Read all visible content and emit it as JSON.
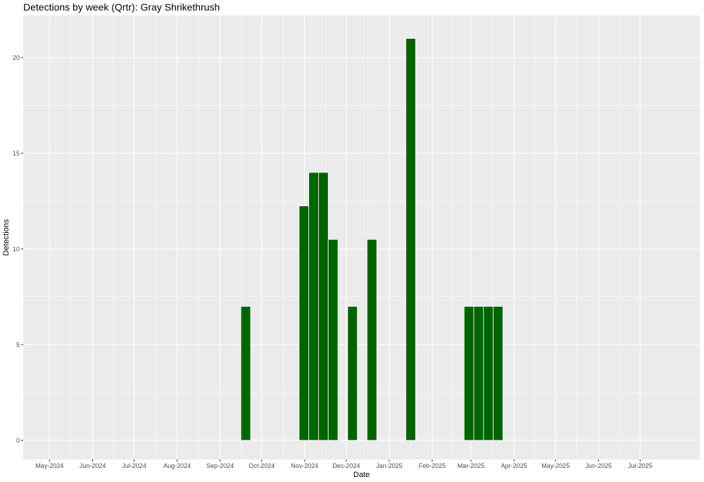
{
  "chart_data": {
    "type": "bar",
    "title": "Detections by week (Qrtr): Gray Shrikethrush",
    "xlabel": "Date",
    "ylabel": "Detections",
    "ylim": [
      -1,
      22.2
    ],
    "yticks": [
      0,
      5,
      10,
      15,
      20
    ],
    "xlim": [
      "2024-04-12",
      "2025-08-13"
    ],
    "xticks": [
      {
        "date": "2024-05-01",
        "label": "May-2024"
      },
      {
        "date": "2024-06-01",
        "label": "Jun-2024"
      },
      {
        "date": "2024-07-01",
        "label": "Jul-2024"
      },
      {
        "date": "2024-08-01",
        "label": "Aug-2024"
      },
      {
        "date": "2024-09-01",
        "label": "Sep-2024"
      },
      {
        "date": "2024-10-01",
        "label": "Oct-2024"
      },
      {
        "date": "2024-11-01",
        "label": "Nov-2024"
      },
      {
        "date": "2024-12-01",
        "label": "Dec-2024"
      },
      {
        "date": "2025-01-01",
        "label": "Jan-2025"
      },
      {
        "date": "2025-02-01",
        "label": "Feb-2025"
      },
      {
        "date": "2025-03-01",
        "label": "Mar-2025"
      },
      {
        "date": "2025-04-01",
        "label": "Apr-2025"
      },
      {
        "date": "2025-05-01",
        "label": "May-2025"
      },
      {
        "date": "2025-06-01",
        "label": "Jun-2025"
      },
      {
        "date": "2025-07-01",
        "label": "Jul-2025"
      }
    ],
    "bar_width_days": 7,
    "bars": [
      {
        "week_start": "2024-09-16",
        "value": 7
      },
      {
        "week_start": "2024-10-28",
        "value": 12.25
      },
      {
        "week_start": "2024-11-04",
        "value": 14
      },
      {
        "week_start": "2024-11-11",
        "value": 14
      },
      {
        "week_start": "2024-11-18",
        "value": 10.5
      },
      {
        "week_start": "2024-12-02",
        "value": 7
      },
      {
        "week_start": "2024-12-16",
        "value": 10.5
      },
      {
        "week_start": "2025-01-13",
        "value": 21
      },
      {
        "week_start": "2025-02-24",
        "value": 7
      },
      {
        "week_start": "2025-03-03",
        "value": 7
      },
      {
        "week_start": "2025-03-10",
        "value": 7
      },
      {
        "week_start": "2025-03-17",
        "value": 7
      }
    ],
    "bar_color": "#006400",
    "panel_color": "#ebebeb",
    "grid_color": "#ffffff",
    "grid": true,
    "legend": "none"
  }
}
